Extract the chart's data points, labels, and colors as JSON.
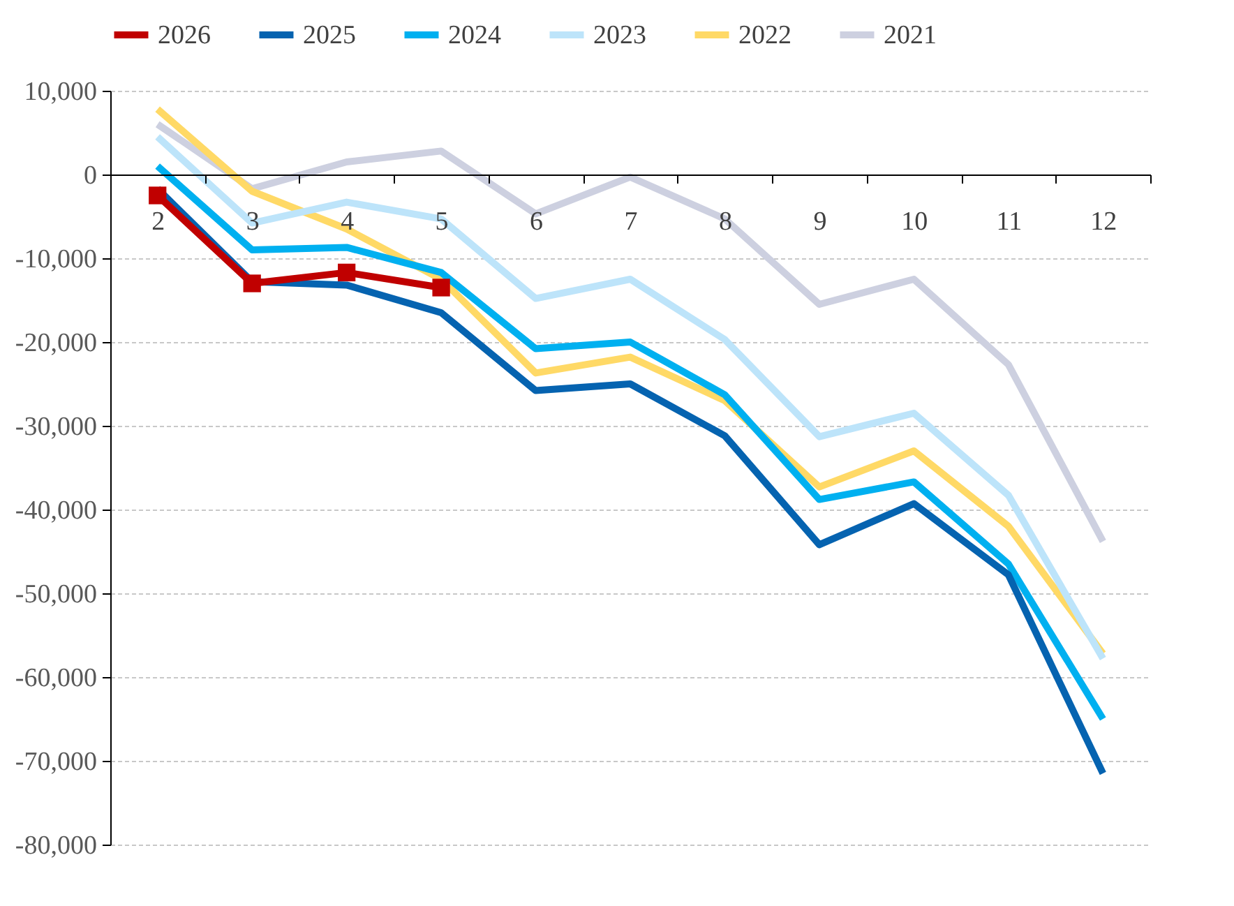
{
  "chart_data": {
    "type": "line",
    "categories": [
      "2",
      "3",
      "4",
      "5",
      "6",
      "7",
      "8",
      "9",
      "10",
      "11",
      "12"
    ],
    "ylim": [
      -80000,
      10000
    ],
    "yticks": [
      {
        "value": 10000,
        "label": "10,000"
      },
      {
        "value": 0,
        "label": "0"
      },
      {
        "value": -10000,
        "label": "-10,000"
      },
      {
        "value": -20000,
        "label": "-20,000"
      },
      {
        "value": -30000,
        "label": "-30,000"
      },
      {
        "value": -40000,
        "label": "-40,000"
      },
      {
        "value": -50000,
        "label": "-50,000"
      },
      {
        "value": -60000,
        "label": "-60,000"
      },
      {
        "value": -70000,
        "label": "-70,000"
      },
      {
        "value": -80000,
        "label": "-80,000"
      }
    ],
    "grid": "y",
    "legend": "top",
    "line_style": "solid",
    "series": [
      {
        "name": "2026",
        "color": "#c00000",
        "marker": "square",
        "values": [
          -2500,
          -13000,
          -11700,
          -13500,
          null,
          null,
          null,
          null,
          null,
          null,
          null
        ]
      },
      {
        "name": "2025",
        "color": "#0563b0",
        "values": [
          -1700,
          -12800,
          -13200,
          -16500,
          -25800,
          -25000,
          -31200,
          -44200,
          -39300,
          -47800,
          -71500
        ]
      },
      {
        "name": "2024",
        "color": "#00b0f0",
        "values": [
          1000,
          -9000,
          -8700,
          -11700,
          -20800,
          -20000,
          -26300,
          -38800,
          -36700,
          -46500,
          -65000
        ]
      },
      {
        "name": "2023",
        "color": "#bde4fa",
        "values": [
          4500,
          -5800,
          -3300,
          -5300,
          -14800,
          -12500,
          -19700,
          -31300,
          -28500,
          -38300,
          -57800
        ]
      },
      {
        "name": "2022",
        "color": "#ffd966",
        "values": [
          7800,
          -2000,
          -6500,
          -12500,
          -23700,
          -21800,
          -27000,
          -37300,
          -33000,
          -42000,
          -57200
        ]
      },
      {
        "name": "2021",
        "color": "#cdd0e0",
        "values": [
          6000,
          -1700,
          1500,
          2800,
          -4700,
          -300,
          -5300,
          -15500,
          -12500,
          -22700,
          -43800
        ]
      }
    ]
  }
}
